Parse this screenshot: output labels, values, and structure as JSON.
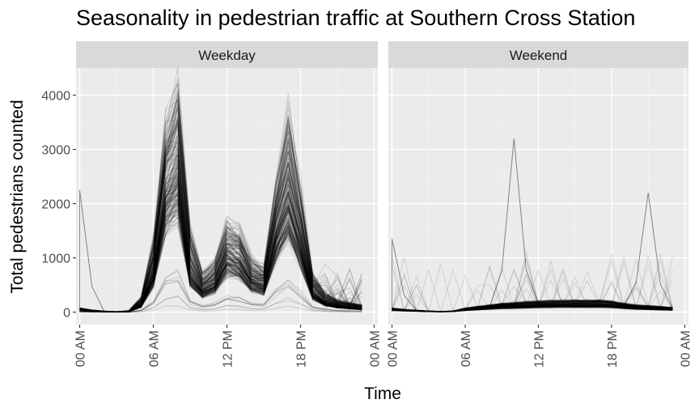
{
  "chart_data": {
    "type": "line",
    "title": "Seasonality in pedestrian traffic at Southern Cross Station",
    "xlabel": "Time",
    "ylabel": "Total pedestrians counted",
    "panels": [
      {
        "name": "Weekday",
        "median_profile": [
          {
            "hour": 0,
            "count": 40
          },
          {
            "hour": 1,
            "count": 20
          },
          {
            "hour": 2,
            "count": 10
          },
          {
            "hour": 3,
            "count": 5
          },
          {
            "hour": 4,
            "count": 10
          },
          {
            "hour": 5,
            "count": 150
          },
          {
            "hour": 6,
            "count": 800
          },
          {
            "hour": 7,
            "count": 2500
          },
          {
            "hour": 8,
            "count": 2900
          },
          {
            "hour": 9,
            "count": 800
          },
          {
            "hour": 10,
            "count": 450
          },
          {
            "hour": 11,
            "count": 600
          },
          {
            "hour": 12,
            "count": 1150
          },
          {
            "hour": 13,
            "count": 1050
          },
          {
            "hour": 14,
            "count": 650
          },
          {
            "hour": 15,
            "count": 550
          },
          {
            "hour": 16,
            "count": 1600
          },
          {
            "hour": 17,
            "count": 2300
          },
          {
            "hour": 18,
            "count": 1400
          },
          {
            "hour": 19,
            "count": 400
          },
          {
            "hour": 20,
            "count": 200
          },
          {
            "hour": 21,
            "count": 130
          },
          {
            "hour": 22,
            "count": 100
          },
          {
            "hour": 23,
            "count": 70
          }
        ],
        "peak_profile": [
          {
            "hour": 0,
            "count": 80
          },
          {
            "hour": 1,
            "count": 40
          },
          {
            "hour": 2,
            "count": 20
          },
          {
            "hour": 3,
            "count": 10
          },
          {
            "hour": 4,
            "count": 30
          },
          {
            "hour": 5,
            "count": 280
          },
          {
            "hour": 6,
            "count": 1300
          },
          {
            "hour": 7,
            "count": 3300
          },
          {
            "hour": 8,
            "count": 4100
          },
          {
            "hour": 9,
            "count": 1600
          },
          {
            "hour": 10,
            "count": 700
          },
          {
            "hour": 11,
            "count": 900
          },
          {
            "hour": 12,
            "count": 1600
          },
          {
            "hour": 13,
            "count": 1500
          },
          {
            "hour": 14,
            "count": 950
          },
          {
            "hour": 15,
            "count": 800
          },
          {
            "hour": 16,
            "count": 2300
          },
          {
            "hour": 17,
            "count": 3600
          },
          {
            "hour": 18,
            "count": 2300
          },
          {
            "hour": 19,
            "count": 700
          },
          {
            "hour": 20,
            "count": 350
          },
          {
            "hour": 21,
            "count": 220
          },
          {
            "hour": 22,
            "count": 180
          },
          {
            "hour": 23,
            "count": 130
          }
        ],
        "outlier_points": [
          {
            "hour": 0,
            "count": 2250
          }
        ]
      },
      {
        "name": "Weekend",
        "median_profile": [
          {
            "hour": 0,
            "count": 50
          },
          {
            "hour": 1,
            "count": 35
          },
          {
            "hour": 2,
            "count": 25
          },
          {
            "hour": 3,
            "count": 15
          },
          {
            "hour": 4,
            "count": 10
          },
          {
            "hour": 5,
            "count": 15
          },
          {
            "hour": 6,
            "count": 50
          },
          {
            "hour": 7,
            "count": 70
          },
          {
            "hour": 8,
            "count": 90
          },
          {
            "hour": 9,
            "count": 110
          },
          {
            "hour": 10,
            "count": 120
          },
          {
            "hour": 11,
            "count": 130
          },
          {
            "hour": 12,
            "count": 140
          },
          {
            "hour": 13,
            "count": 145
          },
          {
            "hour": 14,
            "count": 150
          },
          {
            "hour": 15,
            "count": 150
          },
          {
            "hour": 16,
            "count": 150
          },
          {
            "hour": 17,
            "count": 155
          },
          {
            "hour": 18,
            "count": 140
          },
          {
            "hour": 19,
            "count": 110
          },
          {
            "hour": 20,
            "count": 90
          },
          {
            "hour": 21,
            "count": 80
          },
          {
            "hour": 22,
            "count": 70
          },
          {
            "hour": 23,
            "count": 60
          }
        ],
        "outlier_points": [
          {
            "hour": 10,
            "count": 3200
          },
          {
            "hour": 21,
            "count": 2200
          },
          {
            "hour": 0,
            "count": 1350
          }
        ]
      }
    ],
    "x_ticks": [
      {
        "hour": 0,
        "label": "00 AM"
      },
      {
        "hour": 6,
        "label": "06 AM"
      },
      {
        "hour": 12,
        "label": "12 PM"
      },
      {
        "hour": 18,
        "label": "18 PM"
      },
      {
        "hour": 24,
        "label": "00 AM"
      }
    ],
    "y_ticks": [
      0,
      1000,
      2000,
      3000,
      4000
    ],
    "xlim": [
      -0.3,
      24.3
    ],
    "ylim": [
      -230,
      4500
    ],
    "line_color": "#000000",
    "panel_background": "#ebebeb",
    "strip_background": "#d9d9d9",
    "grid": true,
    "legend": "none"
  }
}
